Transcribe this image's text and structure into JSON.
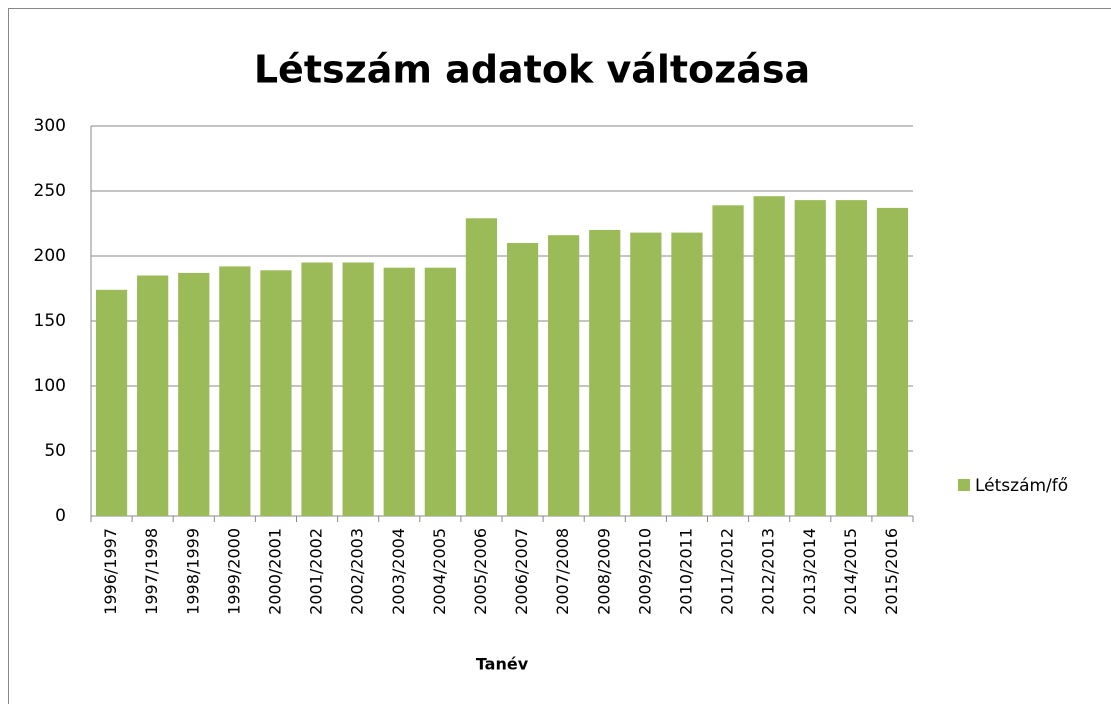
{
  "chart_data": {
    "type": "bar",
    "title": "Létszám adatok változása",
    "x_label": "Tanév",
    "categories": [
      "1996/1997",
      "1997/1998",
      "1998/1999",
      "1999/2000",
      "2000/2001",
      "2001/2002",
      "2002/2003",
      "2003/2004",
      "2004/2005",
      "2005/2006",
      "2006/2007",
      "2007/2008",
      "2008/2009",
      "2009/2010",
      "2010/2011",
      "2011/2012",
      "2012/2013",
      "2013/2014",
      "2014/2015",
      "2015/2016"
    ],
    "series": [
      {
        "name": "Létszám/fő",
        "color": "#9bbb59",
        "values": [
          174,
          185,
          187,
          192,
          189,
          195,
          195,
          191,
          191,
          229,
          210,
          216,
          220,
          218,
          218,
          239,
          246,
          243,
          243,
          237
        ]
      }
    ],
    "ylim": [
      0,
      300
    ],
    "yticks": [
      0,
      50,
      100,
      150,
      200,
      250,
      300
    ],
    "grid": true,
    "legend": "right"
  }
}
